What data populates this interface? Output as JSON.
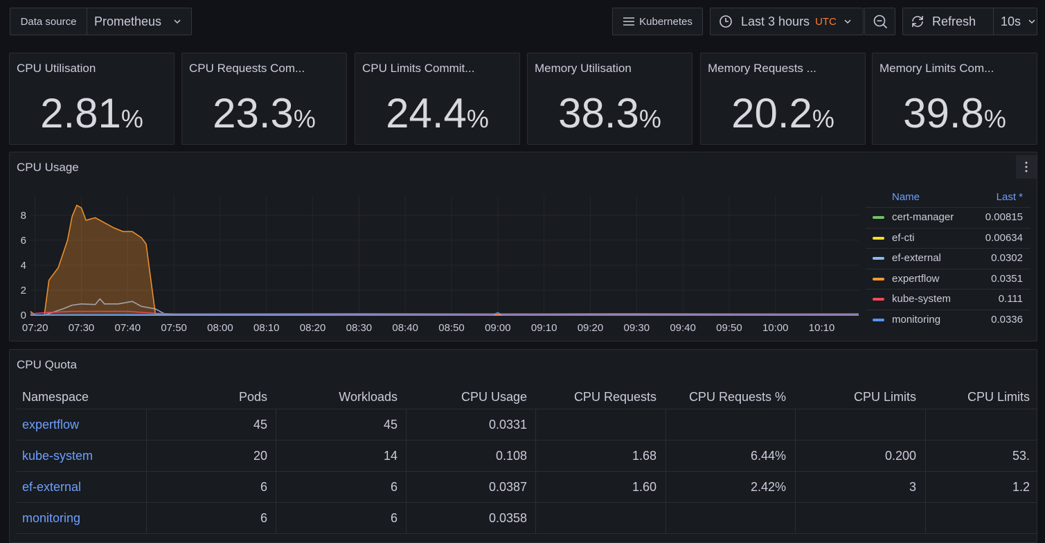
{
  "toolbar": {
    "datasource_label": "Data source",
    "datasource": "Prometheus",
    "dashboards": "Kubernetes",
    "time_range": "Last 3 hours",
    "timezone": "UTC",
    "refresh": "Refresh",
    "interval": "10s"
  },
  "stats": [
    {
      "title": "CPU Utilisation",
      "value": 2.81,
      "unit": "%"
    },
    {
      "title": "CPU Requests Com...",
      "value": 23.3,
      "unit": "%"
    },
    {
      "title": "CPU Limits Commit...",
      "value": 24.4,
      "unit": "%"
    },
    {
      "title": "Memory Utilisation",
      "value": 38.3,
      "unit": "%"
    },
    {
      "title": "Memory Requests ...",
      "value": 20.2,
      "unit": "%"
    },
    {
      "title": "Memory Limits Com...",
      "value": 39.8,
      "unit": "%"
    }
  ],
  "chart_data": {
    "type": "line",
    "title": "CPU Usage",
    "legend_headers": [
      "Name",
      "Last *"
    ],
    "xlim": [
      "07:19",
      "10:18"
    ],
    "xticks": [
      "07:20",
      "07:30",
      "07:40",
      "07:50",
      "08:00",
      "08:10",
      "08:20",
      "08:30",
      "08:40",
      "08:50",
      "09:00",
      "09:10",
      "09:20",
      "09:30",
      "09:40",
      "09:50",
      "10:00",
      "10:10"
    ],
    "ylim": [
      0,
      9.6
    ],
    "yticks": [
      0,
      2,
      4,
      6,
      8
    ],
    "grid": true,
    "series": [
      {
        "name": "cert-manager",
        "color": "#73bf69",
        "last": 0.00815,
        "x": [
          "07:19",
          "10:18"
        ],
        "values": [
          0.01,
          0.01
        ]
      },
      {
        "name": "ef-cti",
        "color": "#fade2a",
        "last": 0.00634,
        "x": [
          "07:19",
          "10:18"
        ],
        "values": [
          0.01,
          0.01
        ]
      },
      {
        "name": "ef-external",
        "color": "#8ab8ff",
        "last": 0.0302,
        "x": [
          "07:19",
          "07:22",
          "07:26",
          "07:28",
          "07:30",
          "07:33",
          "07:34",
          "07:35",
          "07:38",
          "07:41",
          "07:43",
          "07:46",
          "07:48",
          "08:00",
          "09:00",
          "10:18"
        ],
        "values": [
          0,
          0,
          0.5,
          0.8,
          0.9,
          0.85,
          1.3,
          0.9,
          0.9,
          1.1,
          0.7,
          0.5,
          0.1,
          0.05,
          0.05,
          0.05
        ]
      },
      {
        "name": "expertflow",
        "color": "#ff9830",
        "last": 0.0351,
        "area": true,
        "x": [
          "07:19",
          "07:20",
          "07:22",
          "07:23",
          "07:25",
          "07:27",
          "07:28",
          "07:29",
          "07:30",
          "07:31",
          "07:33",
          "07:35",
          "07:37",
          "07:39",
          "07:40",
          "07:41",
          "07:43",
          "07:44",
          "07:46",
          "07:50",
          "08:30",
          "09:00",
          "09:30",
          "10:00",
          "10:18"
        ],
        "values": [
          0.3,
          0,
          0,
          2.8,
          3.8,
          6.0,
          7.9,
          8.8,
          8.6,
          7.6,
          7.8,
          7.4,
          7.0,
          6.7,
          6.7,
          6.7,
          6.2,
          5.7,
          0.1,
          0.05,
          0.05,
          0.05,
          0.05,
          0.05,
          0.05
        ]
      },
      {
        "name": "kube-system",
        "color": "#f2495c",
        "last": 0.111,
        "x": [
          "07:19",
          "07:22",
          "07:28",
          "07:40",
          "07:46",
          "07:50",
          "08:30",
          "09:00",
          "09:30",
          "10:00",
          "10:18"
        ],
        "values": [
          0.1,
          0.2,
          0.3,
          0.3,
          0.15,
          0.1,
          0.12,
          0.1,
          0.12,
          0.1,
          0.11
        ]
      },
      {
        "name": "monitoring",
        "color": "#5794f2",
        "last": 0.0336,
        "x": [
          "07:19",
          "07:50",
          "08:59",
          "09:00",
          "09:01",
          "10:18"
        ],
        "values": [
          0.03,
          0.05,
          0.03,
          0.2,
          0.03,
          0.03
        ]
      }
    ]
  },
  "table": {
    "title": "CPU Quota",
    "headers": [
      "Namespace",
      "Pods",
      "Workloads",
      "CPU Usage",
      "CPU Requests",
      "CPU Requests %",
      "CPU Limits",
      "CPU Limits"
    ],
    "rows": [
      [
        "expertflow",
        "45",
        "45",
        "0.0331",
        null,
        null,
        null,
        null
      ],
      [
        "kube-system",
        "20",
        "14",
        "0.108",
        "1.68",
        "6.44%",
        "0.200",
        "53."
      ],
      [
        "ef-external",
        "6",
        "6",
        "0.0387",
        "1.60",
        "2.42%",
        "3",
        "1.2"
      ],
      [
        "monitoring",
        "6",
        "6",
        "0.0358",
        null,
        null,
        null,
        null
      ]
    ]
  }
}
